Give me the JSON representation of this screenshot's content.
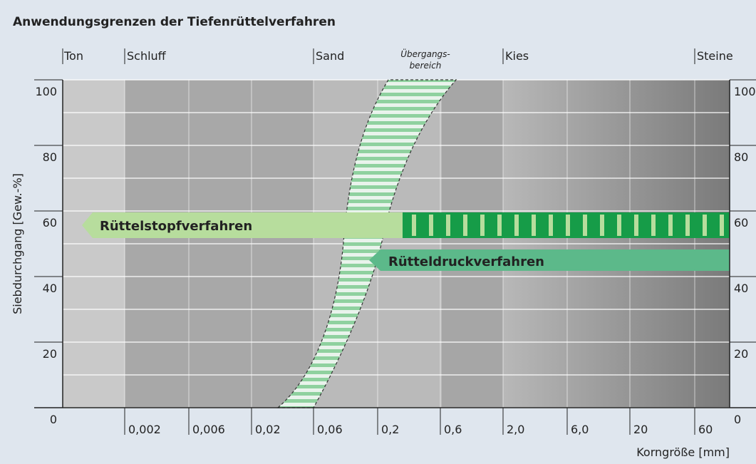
{
  "title": "Anwendungsgrenzen der Tiefenrüttelverfahren",
  "y_axis": {
    "label": "Siebdurchgang [Gew.-%]",
    "ticks": [
      0,
      20,
      40,
      60,
      80,
      100
    ]
  },
  "x_axis": {
    "label": "Korngröße [mm]",
    "ticks": [
      "0,002",
      "0,006",
      "0,02",
      "0,06",
      "0,2",
      "0,6",
      "2,0",
      "6,0",
      "20",
      "60"
    ]
  },
  "zones": [
    "Ton",
    "Schluff",
    "Sand",
    "Kies",
    "Steine"
  ],
  "transition": {
    "line_1": "Übergangs-",
    "line_2": "bereich"
  },
  "methods": [
    "Rüttelstopfverfahren",
    "Rütteldruckverfahren"
  ]
}
